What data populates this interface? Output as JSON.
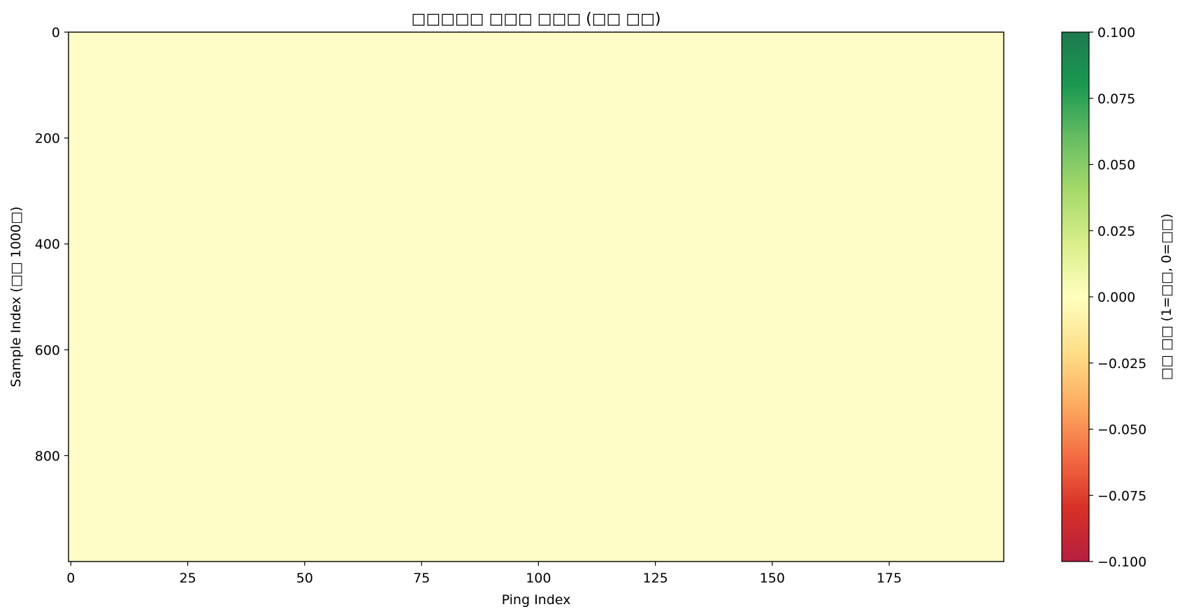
{
  "chart_data": {
    "type": "heatmap",
    "title": "□□□□□ □□□ □□□ (□□ □□)",
    "xlabel": "Ping Index",
    "ylabel": "Sample Index (□□ 1000□)",
    "x_range": [
      0,
      199
    ],
    "y_range": [
      0,
      999
    ],
    "x_ticks": [
      "0",
      "25",
      "50",
      "75",
      "100",
      "125",
      "150",
      "175"
    ],
    "y_ticks": [
      "0",
      "200",
      "400",
      "600",
      "800"
    ],
    "uniform_value": 0.0,
    "grid": false,
    "colorbar": {
      "label": "□□ □□ (1=□□, 0=□□)",
      "vmin": -0.1,
      "vmax": 0.1,
      "colormap": "RdYlGn",
      "ticks": [
        "0.100",
        "0.075",
        "0.050",
        "0.025",
        "0.000",
        "−0.025",
        "−0.050",
        "−0.075",
        "−0.100"
      ],
      "tick_values": [
        0.1,
        0.075,
        0.05,
        0.025,
        0.0,
        -0.025,
        -0.05,
        -0.075,
        -0.1
      ]
    },
    "colors": {
      "cell": "#fefdc8",
      "cmap_stops": [
        "#b51f3f",
        "#d73027",
        "#f46d43",
        "#fdae61",
        "#fee08b",
        "#ffffbf",
        "#d9ef8b",
        "#a6d96a",
        "#66bd63",
        "#1a9850",
        "#1e7a4f"
      ]
    }
  }
}
